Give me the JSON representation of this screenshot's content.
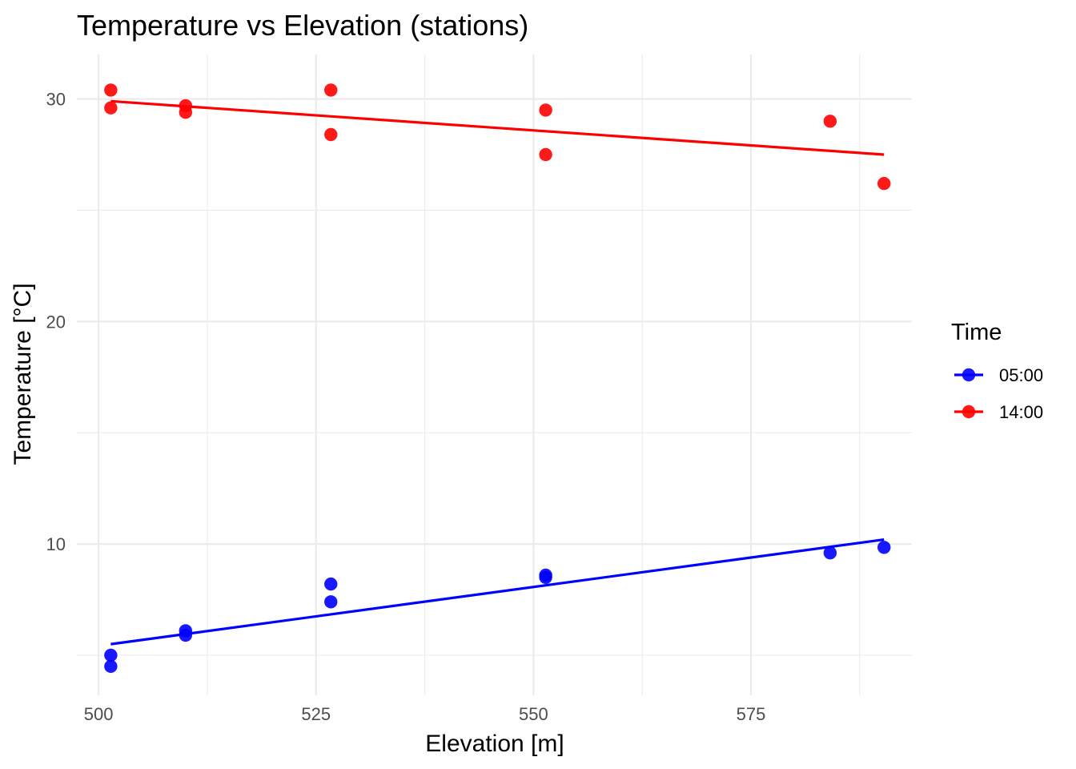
{
  "chart_data": {
    "type": "scatter",
    "title": "Temperature vs Elevation (stations)",
    "xlabel": "Elevation [m]",
    "ylabel": "Temperature [°C]",
    "xlim": [
      497.5,
      593.5
    ],
    "ylim": [
      3.2,
      32.0
    ],
    "x_ticks": [
      500,
      525,
      550,
      575
    ],
    "x_tick_labels": [
      "500",
      "525",
      "550",
      "575"
    ],
    "y_ticks": [
      10,
      20,
      30
    ],
    "y_tick_labels": [
      "10",
      "20",
      "30"
    ],
    "grid": true,
    "legend": {
      "title": "Time",
      "placement": "right"
    },
    "series": [
      {
        "name": "05:00",
        "color": "#0000ff",
        "points": [
          {
            "x": 501.4,
            "y": 5.0
          },
          {
            "x": 501.4,
            "y": 4.5
          },
          {
            "x": 510.0,
            "y": 6.1
          },
          {
            "x": 510.0,
            "y": 5.9
          },
          {
            "x": 526.7,
            "y": 8.2
          },
          {
            "x": 526.7,
            "y": 7.4
          },
          {
            "x": 551.4,
            "y": 8.6
          },
          {
            "x": 551.4,
            "y": 8.5
          },
          {
            "x": 584.1,
            "y": 9.6
          },
          {
            "x": 590.3,
            "y": 9.85
          }
        ],
        "trend": {
          "x": [
            501.4,
            590.3
          ],
          "y": [
            5.5,
            10.2
          ]
        }
      },
      {
        "name": "14:00",
        "color": "#ff0000",
        "points": [
          {
            "x": 501.4,
            "y": 30.4
          },
          {
            "x": 501.4,
            "y": 29.6
          },
          {
            "x": 510.0,
            "y": 29.7
          },
          {
            "x": 510.0,
            "y": 29.4
          },
          {
            "x": 526.7,
            "y": 30.4
          },
          {
            "x": 526.7,
            "y": 28.4
          },
          {
            "x": 551.4,
            "y": 29.5
          },
          {
            "x": 551.4,
            "y": 27.5
          },
          {
            "x": 584.1,
            "y": 29.0
          },
          {
            "x": 590.3,
            "y": 26.2
          }
        ],
        "trend": {
          "x": [
            501.4,
            590.3
          ],
          "y": [
            29.9,
            27.5
          ]
        }
      }
    ]
  }
}
